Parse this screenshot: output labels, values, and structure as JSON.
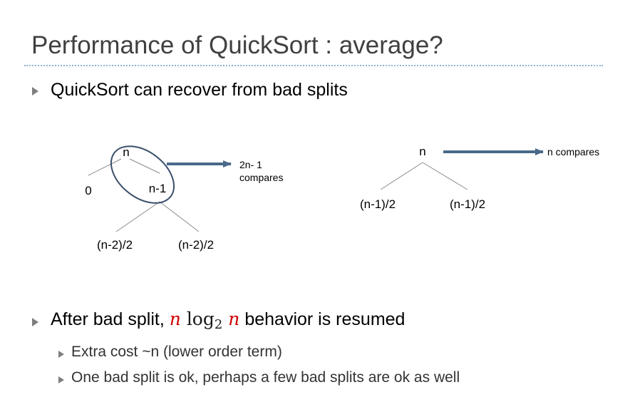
{
  "slide": {
    "title": "Performance of QuickSort : average?",
    "bullet1": "QuickSort can recover from bad splits",
    "bullet2": {
      "before": "After bad split, ",
      "math_n1": "n",
      "math_log": "log",
      "math_base": "2",
      "math_n2": "n",
      "after": " behavior is resumed"
    },
    "sub_bullets": [
      "Extra cost ~n (lower order term)",
      "One bad split is ok, perhaps a few bad splits are ok as well"
    ]
  },
  "diagram_left": {
    "root": "n",
    "left_child": "0",
    "right_child": "n-1",
    "grandchild_left": "(n-2)/2",
    "grandchild_right": "(n-2)/2",
    "arrow_label_line1": "2n- 1",
    "arrow_label_line2": "compares"
  },
  "diagram_right": {
    "root": "n",
    "left_child": "(n-1)/2",
    "right_child": "(n-1)/2",
    "arrow_label": "n compares"
  },
  "colors": {
    "title": "#404040",
    "rule": "#8fb3d1",
    "tree_line": "#8a8a8a",
    "arrow": "#4a6a8a",
    "ellipse": "#3b4f6a",
    "math_var": "#d00000"
  }
}
